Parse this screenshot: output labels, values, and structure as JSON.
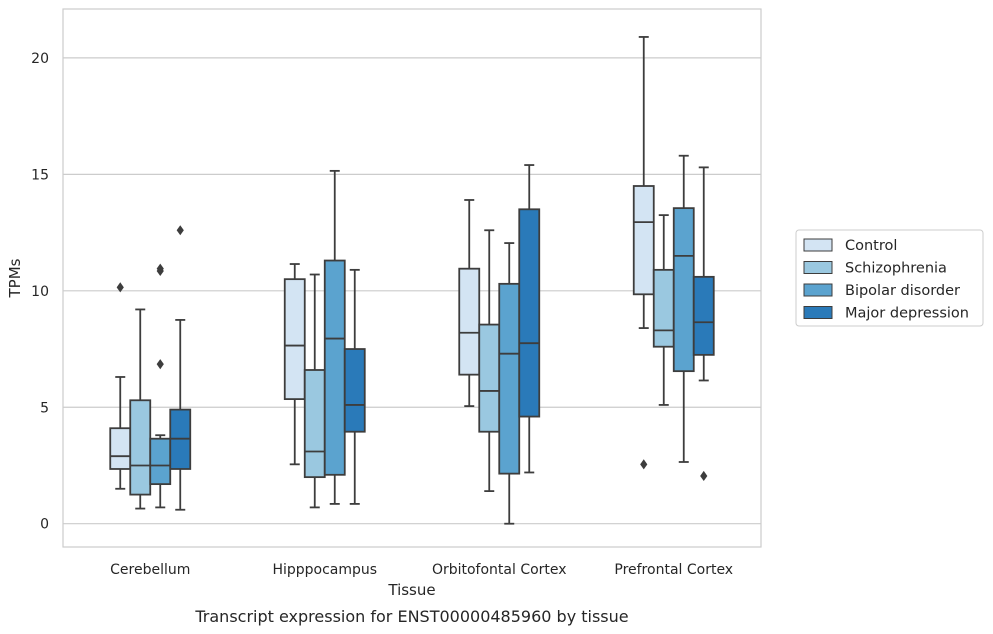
{
  "chart_data": {
    "type": "box",
    "caption": "Transcript expression for ENST00000485960 by tissue",
    "xlabel": "Tissue",
    "ylabel": "TPMs",
    "ylim": [
      -1,
      22.1
    ],
    "yticks": [
      0,
      5,
      10,
      15,
      20
    ],
    "grid": "horizontal",
    "legend_position": "right",
    "categories": [
      "Cerebellum",
      "Hipppocampus",
      "Orbitofontal Cortex",
      "Prefrontal Cortex"
    ],
    "series": [
      {
        "name": "Control",
        "color": "#d3e4f3",
        "boxes": [
          {
            "whislo": 1.5,
            "q1": 2.35,
            "med": 2.9,
            "q3": 4.1,
            "whishi": 6.3,
            "fliers": [
              10.15
            ]
          },
          {
            "whislo": 2.55,
            "q1": 5.35,
            "med": 7.65,
            "q3": 10.5,
            "whishi": 11.15,
            "fliers": []
          },
          {
            "whislo": 5.05,
            "q1": 6.4,
            "med": 8.2,
            "q3": 10.95,
            "whishi": 13.9,
            "fliers": []
          },
          {
            "whislo": 8.4,
            "q1": 9.85,
            "med": 12.95,
            "q3": 14.5,
            "whishi": 20.9,
            "fliers": [
              2.55
            ]
          }
        ]
      },
      {
        "name": "Schizophrenia",
        "color": "#9ac8e0",
        "boxes": [
          {
            "whislo": 0.65,
            "q1": 1.25,
            "med": 2.5,
            "q3": 5.3,
            "whishi": 9.2,
            "fliers": []
          },
          {
            "whislo": 0.7,
            "q1": 2.0,
            "med": 3.1,
            "q3": 6.6,
            "whishi": 10.7,
            "fliers": []
          },
          {
            "whislo": 1.4,
            "q1": 3.95,
            "med": 5.7,
            "q3": 8.55,
            "whishi": 12.6,
            "fliers": []
          },
          {
            "whislo": 5.1,
            "q1": 7.6,
            "med": 8.3,
            "q3": 10.9,
            "whishi": 13.25,
            "fliers": []
          }
        ]
      },
      {
        "name": "Bipolar disorder",
        "color": "#5ba3cf",
        "boxes": [
          {
            "whislo": 0.7,
            "q1": 1.7,
            "med": 2.5,
            "q3": 3.65,
            "whishi": 3.8,
            "fliers": [
              6.85,
              10.85,
              10.95
            ]
          },
          {
            "whislo": 0.85,
            "q1": 2.1,
            "med": 7.95,
            "q3": 11.3,
            "whishi": 15.15,
            "fliers": []
          },
          {
            "whislo": 0.0,
            "q1": 2.15,
            "med": 7.3,
            "q3": 10.3,
            "whishi": 12.05,
            "fliers": []
          },
          {
            "whislo": 2.65,
            "q1": 6.55,
            "med": 11.5,
            "q3": 13.55,
            "whishi": 15.8,
            "fliers": []
          }
        ]
      },
      {
        "name": "Major depression",
        "color": "#2a7ab9",
        "boxes": [
          {
            "whislo": 0.6,
            "q1": 2.35,
            "med": 3.65,
            "q3": 4.9,
            "whishi": 8.75,
            "fliers": [
              12.6
            ]
          },
          {
            "whislo": 0.85,
            "q1": 3.95,
            "med": 5.1,
            "q3": 7.5,
            "whishi": 10.9,
            "fliers": []
          },
          {
            "whislo": 2.2,
            "q1": 4.6,
            "med": 7.75,
            "q3": 13.5,
            "whishi": 15.4,
            "fliers": []
          },
          {
            "whislo": 6.15,
            "q1": 7.25,
            "med": 8.65,
            "q3": 10.6,
            "whishi": 15.3,
            "fliers": [
              2.05
            ]
          }
        ]
      }
    ]
  }
}
